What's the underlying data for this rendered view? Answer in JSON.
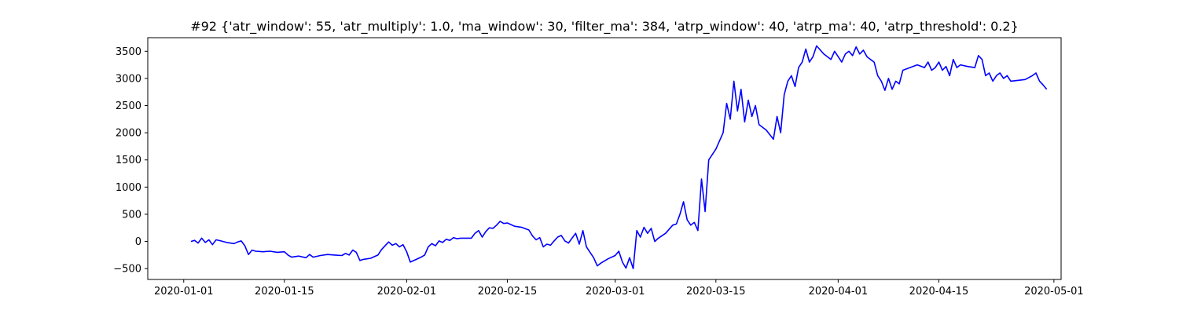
{
  "chart_data": {
    "type": "line",
    "title": "#92 {'atr_window': 55, 'atr_multiply': 1.0, 'ma_window': 30, 'filter_ma': 384, 'atrp_window': 40, 'atrp_ma': 40, 'atrp_threshold': 0.2}",
    "xlabel": "",
    "ylabel": "",
    "xlim": [
      "2019-12-27",
      "2020-05-02"
    ],
    "ylim": [
      -700,
      3750
    ],
    "x_ticks": [
      "2020-01-01",
      "2020-01-15",
      "2020-02-01",
      "2020-02-15",
      "2020-03-01",
      "2020-03-15",
      "2020-04-01",
      "2020-04-15",
      "2020-05-01"
    ],
    "y_ticks": [
      -500,
      0,
      500,
      1000,
      1500,
      2000,
      2500,
      3000,
      3500
    ],
    "grid": false,
    "legend": "none",
    "line_color": "#0000ff",
    "series": [
      {
        "points": [
          [
            "2020-01-02 00:00",
            0
          ],
          [
            "2020-01-02 12:00",
            20
          ],
          [
            "2020-01-03 00:00",
            -30
          ],
          [
            "2020-01-03 12:00",
            60
          ],
          [
            "2020-01-04 00:00",
            -20
          ],
          [
            "2020-01-04 12:00",
            30
          ],
          [
            "2020-01-05 00:00",
            -60
          ],
          [
            "2020-01-05 12:00",
            30
          ],
          [
            "2020-01-06 00:00",
            15
          ],
          [
            "2020-01-07 00:00",
            -20
          ],
          [
            "2020-01-08 00:00",
            -40
          ],
          [
            "2020-01-08 12:00",
            -10
          ],
          [
            "2020-01-09 00:00",
            10
          ],
          [
            "2020-01-09 12:00",
            -80
          ],
          [
            "2020-01-10 00:00",
            -240
          ],
          [
            "2020-01-10 12:00",
            -160
          ],
          [
            "2020-01-11 00:00",
            -180
          ],
          [
            "2020-01-12 00:00",
            -190
          ],
          [
            "2020-01-13 00:00",
            -180
          ],
          [
            "2020-01-14 00:00",
            -200
          ],
          [
            "2020-01-15 00:00",
            -190
          ],
          [
            "2020-01-15 12:00",
            -250
          ],
          [
            "2020-01-16 00:00",
            -290
          ],
          [
            "2020-01-17 00:00",
            -270
          ],
          [
            "2020-01-18 00:00",
            -300
          ],
          [
            "2020-01-18 12:00",
            -240
          ],
          [
            "2020-01-19 00:00",
            -290
          ],
          [
            "2020-01-20 00:00",
            -260
          ],
          [
            "2020-01-21 00:00",
            -240
          ],
          [
            "2020-01-22 00:00",
            -250
          ],
          [
            "2020-01-23 00:00",
            -260
          ],
          [
            "2020-01-23 12:00",
            -220
          ],
          [
            "2020-01-24 00:00",
            -250
          ],
          [
            "2020-01-24 12:00",
            -160
          ],
          [
            "2020-01-25 00:00",
            -200
          ],
          [
            "2020-01-25 12:00",
            -350
          ],
          [
            "2020-01-26 00:00",
            -330
          ],
          [
            "2020-01-27 00:00",
            -310
          ],
          [
            "2020-01-28 00:00",
            -250
          ],
          [
            "2020-01-28 12:00",
            -150
          ],
          [
            "2020-01-29 00:00",
            -80
          ],
          [
            "2020-01-29 12:00",
            -10
          ],
          [
            "2020-01-30 00:00",
            -70
          ],
          [
            "2020-01-30 12:00",
            -40
          ],
          [
            "2020-01-31 00:00",
            -100
          ],
          [
            "2020-01-31 12:00",
            -60
          ],
          [
            "2020-02-01 00:00",
            -190
          ],
          [
            "2020-02-01 12:00",
            -380
          ],
          [
            "2020-02-03 00:00",
            -290
          ],
          [
            "2020-02-03 12:00",
            -250
          ],
          [
            "2020-02-04 00:00",
            -100
          ],
          [
            "2020-02-04 12:00",
            -40
          ],
          [
            "2020-02-05 00:00",
            -80
          ],
          [
            "2020-02-05 12:00",
            10
          ],
          [
            "2020-02-06 00:00",
            -20
          ],
          [
            "2020-02-06 12:00",
            40
          ],
          [
            "2020-02-07 00:00",
            20
          ],
          [
            "2020-02-07 12:00",
            70
          ],
          [
            "2020-02-08 00:00",
            50
          ],
          [
            "2020-02-08 12:00",
            60
          ],
          [
            "2020-02-10 00:00",
            60
          ],
          [
            "2020-02-10 12:00",
            150
          ],
          [
            "2020-02-11 00:00",
            200
          ],
          [
            "2020-02-11 12:00",
            80
          ],
          [
            "2020-02-12 00:00",
            180
          ],
          [
            "2020-02-12 12:00",
            250
          ],
          [
            "2020-02-13 00:00",
            240
          ],
          [
            "2020-02-13 12:00",
            300
          ],
          [
            "2020-02-14 00:00",
            370
          ],
          [
            "2020-02-14 12:00",
            330
          ],
          [
            "2020-02-15 00:00",
            340
          ],
          [
            "2020-02-15 12:00",
            310
          ],
          [
            "2020-02-16 00:00",
            280
          ],
          [
            "2020-02-17 00:00",
            260
          ],
          [
            "2020-02-18 00:00",
            210
          ],
          [
            "2020-02-18 12:00",
            100
          ],
          [
            "2020-02-19 00:00",
            30
          ],
          [
            "2020-02-19 12:00",
            70
          ],
          [
            "2020-02-20 00:00",
            -100
          ],
          [
            "2020-02-20 12:00",
            -50
          ],
          [
            "2020-02-21 00:00",
            -70
          ],
          [
            "2020-02-21 12:00",
            10
          ],
          [
            "2020-02-22 00:00",
            80
          ],
          [
            "2020-02-22 12:00",
            110
          ],
          [
            "2020-02-23 00:00",
            10
          ],
          [
            "2020-02-23 12:00",
            -30
          ],
          [
            "2020-02-24 00:00",
            60
          ],
          [
            "2020-02-24 12:00",
            150
          ],
          [
            "2020-02-25 00:00",
            -50
          ],
          [
            "2020-02-25 12:00",
            200
          ],
          [
            "2020-02-26 00:00",
            -100
          ],
          [
            "2020-02-26 12:00",
            -200
          ],
          [
            "2020-02-27 00:00",
            -300
          ],
          [
            "2020-02-27 12:00",
            -450
          ],
          [
            "2020-02-28 00:00",
            -400
          ],
          [
            "2020-02-29 00:00",
            -320
          ],
          [
            "2020-03-01 00:00",
            -260
          ],
          [
            "2020-03-01 12:00",
            -180
          ],
          [
            "2020-03-02 00:00",
            -380
          ],
          [
            "2020-03-02 12:00",
            -490
          ],
          [
            "2020-03-03 00:00",
            -300
          ],
          [
            "2020-03-03 12:00",
            -500
          ],
          [
            "2020-03-04 00:00",
            200
          ],
          [
            "2020-03-04 12:00",
            80
          ],
          [
            "2020-03-05 00:00",
            260
          ],
          [
            "2020-03-05 12:00",
            150
          ],
          [
            "2020-03-06 00:00",
            240
          ],
          [
            "2020-03-06 12:00",
            0
          ],
          [
            "2020-03-07 00:00",
            60
          ],
          [
            "2020-03-08 00:00",
            150
          ],
          [
            "2020-03-09 00:00",
            300
          ],
          [
            "2020-03-09 12:00",
            320
          ],
          [
            "2020-03-10 00:00",
            500
          ],
          [
            "2020-03-10 12:00",
            730
          ],
          [
            "2020-03-11 00:00",
            400
          ],
          [
            "2020-03-11 12:00",
            300
          ],
          [
            "2020-03-12 00:00",
            350
          ],
          [
            "2020-03-12 12:00",
            200
          ],
          [
            "2020-03-13 00:00",
            1150
          ],
          [
            "2020-03-13 12:00",
            550
          ],
          [
            "2020-03-14 00:00",
            1500
          ],
          [
            "2020-03-15 00:00",
            1700
          ],
          [
            "2020-03-16 00:00",
            2000
          ],
          [
            "2020-03-16 12:00",
            2540
          ],
          [
            "2020-03-17 00:00",
            2250
          ],
          [
            "2020-03-17 12:00",
            2950
          ],
          [
            "2020-03-18 00:00",
            2400
          ],
          [
            "2020-03-18 12:00",
            2800
          ],
          [
            "2020-03-19 00:00",
            2200
          ],
          [
            "2020-03-19 12:00",
            2600
          ],
          [
            "2020-03-20 00:00",
            2300
          ],
          [
            "2020-03-20 12:00",
            2500
          ],
          [
            "2020-03-21 00:00",
            2150
          ],
          [
            "2020-03-22 00:00",
            2050
          ],
          [
            "2020-03-23 00:00",
            1880
          ],
          [
            "2020-03-23 12:00",
            2300
          ],
          [
            "2020-03-24 00:00",
            2000
          ],
          [
            "2020-03-24 12:00",
            2700
          ],
          [
            "2020-03-25 00:00",
            2950
          ],
          [
            "2020-03-25 12:00",
            3050
          ],
          [
            "2020-03-26 00:00",
            2850
          ],
          [
            "2020-03-26 12:00",
            3200
          ],
          [
            "2020-03-27 00:00",
            3300
          ],
          [
            "2020-03-27 12:00",
            3540
          ],
          [
            "2020-03-28 00:00",
            3300
          ],
          [
            "2020-03-28 12:00",
            3400
          ],
          [
            "2020-03-29 00:00",
            3600
          ],
          [
            "2020-03-30 00:00",
            3450
          ],
          [
            "2020-03-31 00:00",
            3350
          ],
          [
            "2020-03-31 12:00",
            3500
          ],
          [
            "2020-04-01 00:00",
            3400
          ],
          [
            "2020-04-01 12:00",
            3300
          ],
          [
            "2020-04-02 00:00",
            3450
          ],
          [
            "2020-04-02 12:00",
            3500
          ],
          [
            "2020-04-03 00:00",
            3420
          ],
          [
            "2020-04-03 12:00",
            3580
          ],
          [
            "2020-04-04 00:00",
            3450
          ],
          [
            "2020-04-04 12:00",
            3520
          ],
          [
            "2020-04-05 00:00",
            3400
          ],
          [
            "2020-04-05 12:00",
            3350
          ],
          [
            "2020-04-06 00:00",
            3300
          ],
          [
            "2020-04-06 12:00",
            3050
          ],
          [
            "2020-04-07 00:00",
            2950
          ],
          [
            "2020-04-07 12:00",
            2780
          ],
          [
            "2020-04-08 00:00",
            3000
          ],
          [
            "2020-04-08 12:00",
            2800
          ],
          [
            "2020-04-09 00:00",
            2950
          ],
          [
            "2020-04-09 12:00",
            2900
          ],
          [
            "2020-04-10 00:00",
            3150
          ],
          [
            "2020-04-12 00:00",
            3250
          ],
          [
            "2020-04-13 00:00",
            3200
          ],
          [
            "2020-04-13 12:00",
            3300
          ],
          [
            "2020-04-14 00:00",
            3150
          ],
          [
            "2020-04-14 12:00",
            3200
          ],
          [
            "2020-04-15 00:00",
            3300
          ],
          [
            "2020-04-15 12:00",
            3150
          ],
          [
            "2020-04-16 00:00",
            3220
          ],
          [
            "2020-04-16 12:00",
            3050
          ],
          [
            "2020-04-17 00:00",
            3350
          ],
          [
            "2020-04-17 12:00",
            3200
          ],
          [
            "2020-04-18 00:00",
            3250
          ],
          [
            "2020-04-19 00:00",
            3220
          ],
          [
            "2020-04-20 00:00",
            3200
          ],
          [
            "2020-04-20 12:00",
            3420
          ],
          [
            "2020-04-21 00:00",
            3350
          ],
          [
            "2020-04-21 12:00",
            3050
          ],
          [
            "2020-04-22 00:00",
            3100
          ],
          [
            "2020-04-22 12:00",
            2950
          ],
          [
            "2020-04-23 00:00",
            3050
          ],
          [
            "2020-04-23 12:00",
            3100
          ],
          [
            "2020-04-24 00:00",
            3000
          ],
          [
            "2020-04-24 12:00",
            3050
          ],
          [
            "2020-04-25 00:00",
            2950
          ],
          [
            "2020-04-27 00:00",
            2980
          ],
          [
            "2020-04-28 00:00",
            3050
          ],
          [
            "2020-04-28 12:00",
            3100
          ],
          [
            "2020-04-29 00:00",
            2950
          ],
          [
            "2020-04-29 12:00",
            2880
          ],
          [
            "2020-04-30 00:00",
            2800
          ]
        ]
      }
    ]
  }
}
